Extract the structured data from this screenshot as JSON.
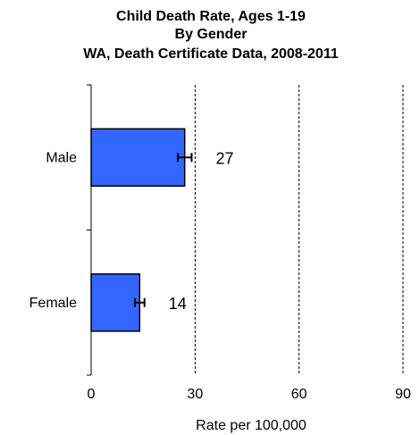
{
  "chart_data": {
    "type": "bar",
    "orientation": "horizontal",
    "title_lines": [
      "Child Death Rate, Ages 1-19",
      "By Gender",
      "WA,  Death Certificate Data, 2008-2011"
    ],
    "categories": [
      "Male",
      "Female"
    ],
    "values": [
      27,
      14
    ],
    "value_labels": [
      "27",
      "14"
    ],
    "error_bars": [
      {
        "low": 25,
        "high": 29
      },
      {
        "low": 12.6,
        "high": 15.4
      }
    ],
    "xlabel": "Rate per 100,000",
    "ylabel": "",
    "xlim": [
      0,
      90
    ],
    "xticks": [
      0,
      30,
      60,
      90
    ],
    "xtick_labels": [
      "0",
      "30",
      "60",
      "90"
    ],
    "gridlines": "vertical dashed at ticks",
    "legend": "none",
    "colors": {
      "bar": "#3366ff",
      "bar_outline": "#000000",
      "gridline": "#000000"
    }
  }
}
